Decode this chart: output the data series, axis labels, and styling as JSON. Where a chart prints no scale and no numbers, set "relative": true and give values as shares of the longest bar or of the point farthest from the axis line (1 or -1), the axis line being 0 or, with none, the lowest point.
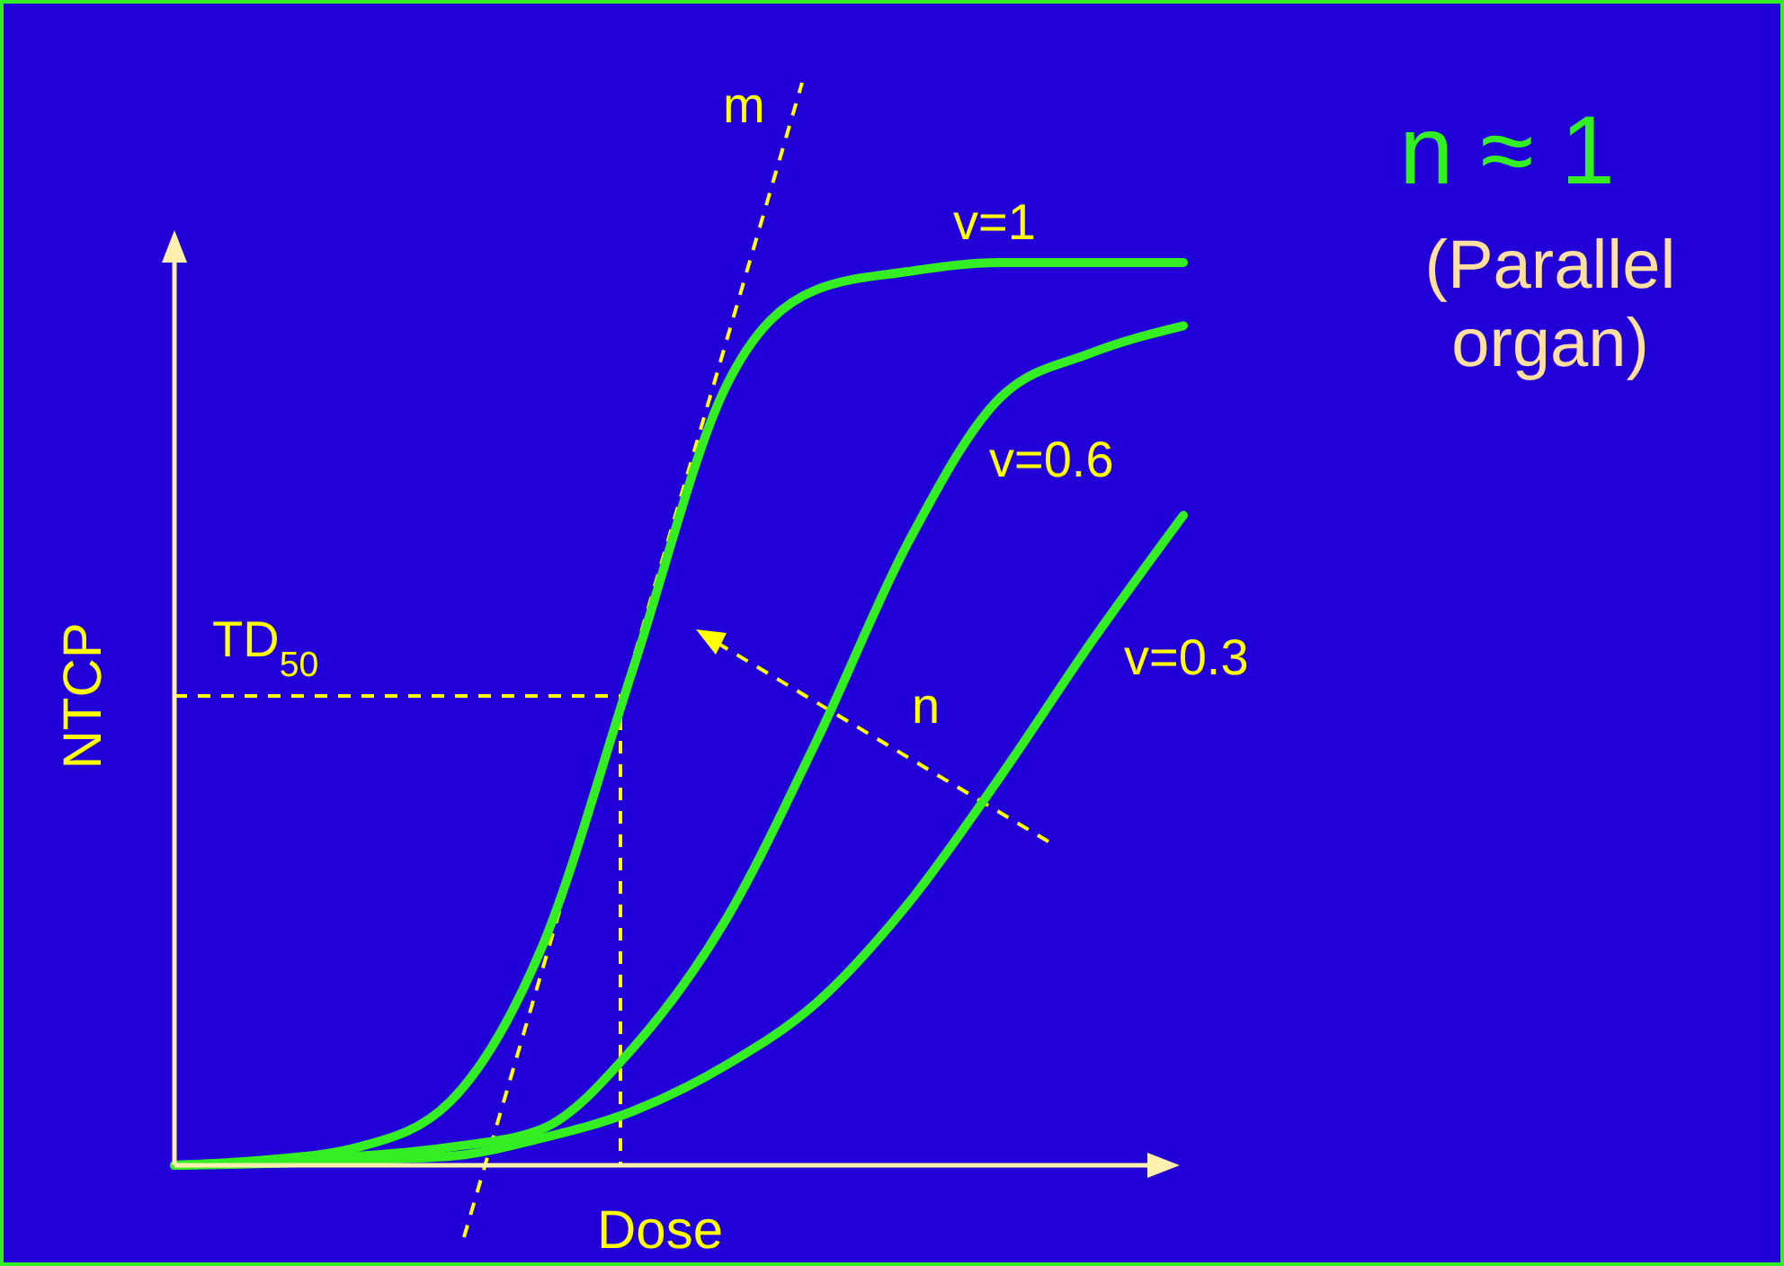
{
  "chart_data": {
    "type": "line",
    "relative": true,
    "xlabel": "Dose",
    "ylabel": "NTCP",
    "categories": [
      null,
      null,
      null,
      null,
      null,
      null,
      null,
      null,
      null,
      null,
      null,
      null
    ],
    "series": [
      {
        "name": "v=1",
        "color": "#33ee22",
        "values": [
          0,
          0.006,
          0.02,
          0.07,
          0.24,
          0.55,
          0.86,
          0.97,
          0.99,
          1,
          1,
          1
        ]
      },
      {
        "name": "v=0.6",
        "color": "#33ee22",
        "values": [
          0,
          0.004,
          0.01,
          0.02,
          0.04,
          0.13,
          0.27,
          0.47,
          0.69,
          0.85,
          0.9,
          0.93
        ]
      },
      {
        "name": "v=0.3",
        "color": "#33ee22",
        "values": [
          0,
          0.002,
          0.006,
          0.01,
          0.03,
          0.06,
          0.11,
          0.18,
          0.29,
          0.43,
          0.58,
          0.72
        ]
      }
    ],
    "annotations": [
      "m",
      "TD$_{50}$",
      "n",
      "n ≈ 1",
      "(Parallel organ)"
    ]
  }
}
